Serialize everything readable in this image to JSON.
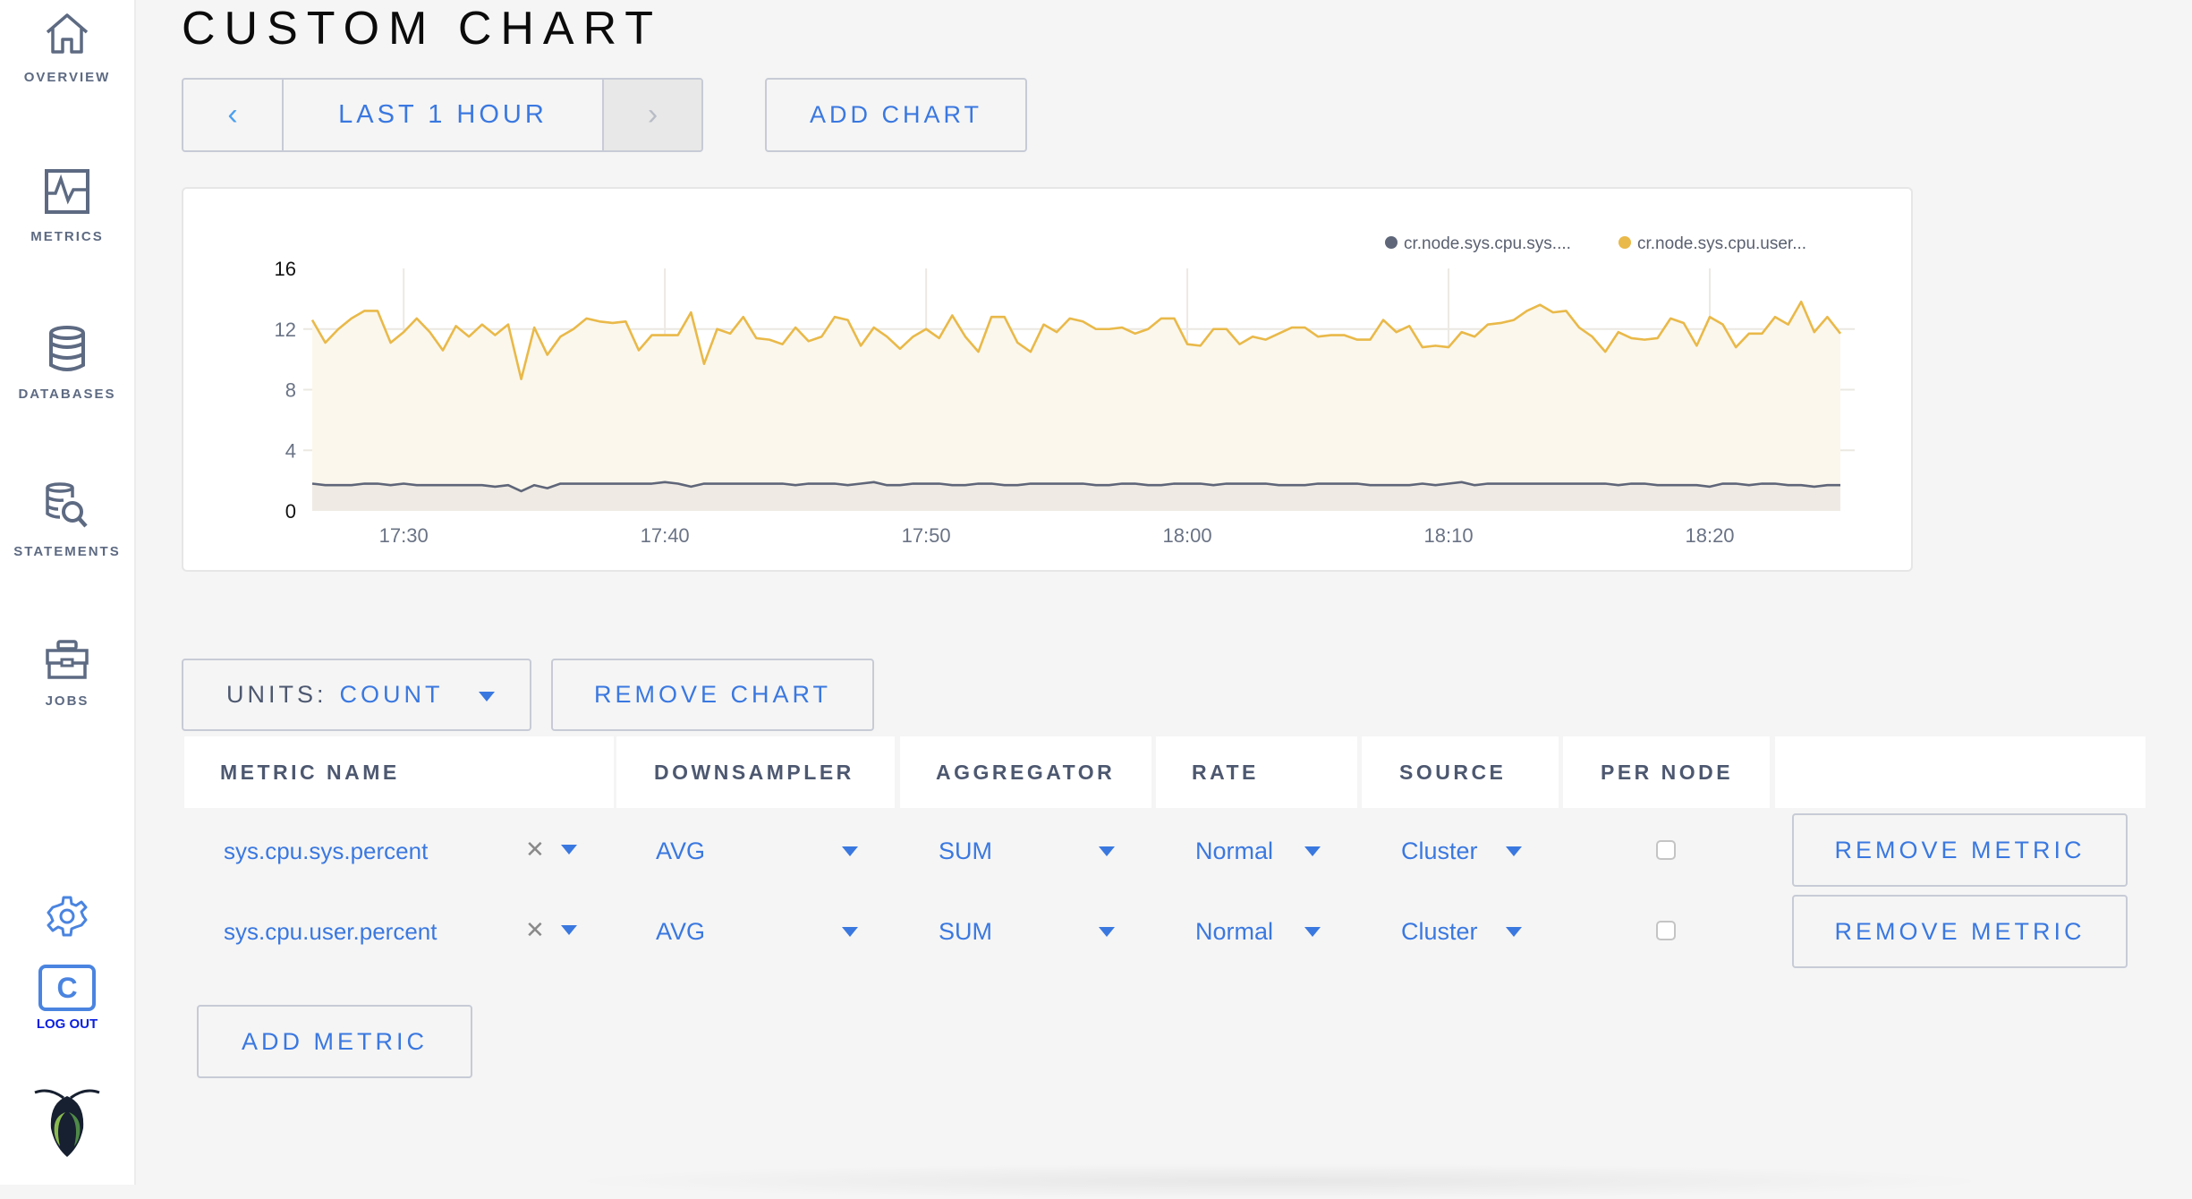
{
  "sidebar": {
    "items": [
      {
        "label": "OVERVIEW",
        "icon": "home-icon"
      },
      {
        "label": "METRICS",
        "icon": "metrics-icon"
      },
      {
        "label": "DATABASES",
        "icon": "database-icon"
      },
      {
        "label": "STATEMENTS",
        "icon": "statements-icon"
      },
      {
        "label": "JOBS",
        "icon": "briefcase-icon"
      }
    ],
    "settings_icon": "gear-icon",
    "user_initial": "C",
    "logout_label": "LOG OUT",
    "logo": "cockroach-logo"
  },
  "page": {
    "title": "CUSTOM CHART"
  },
  "toolbar": {
    "time_range": "LAST 1 HOUR",
    "prev_icon": "chevron-left-icon",
    "next_icon": "chevron-right-icon",
    "add_chart_label": "ADD CHART"
  },
  "chart_controls": {
    "units_label": "UNITS:",
    "units_value": "COUNT",
    "remove_chart_label": "REMOVE CHART"
  },
  "table": {
    "headers": [
      "METRIC NAME",
      "DOWNSAMPLER",
      "AGGREGATOR",
      "RATE",
      "SOURCE",
      "PER NODE",
      ""
    ],
    "rows": [
      {
        "metric": "sys.cpu.sys.percent",
        "downsampler": "AVG",
        "aggregator": "SUM",
        "rate": "Normal",
        "source": "Cluster",
        "per_node": false,
        "remove_label": "REMOVE METRIC"
      },
      {
        "metric": "sys.cpu.user.percent",
        "downsampler": "AVG",
        "aggregator": "SUM",
        "rate": "Normal",
        "source": "Cluster",
        "per_node": false,
        "remove_label": "REMOVE METRIC"
      }
    ],
    "add_metric_label": "ADD METRIC"
  },
  "colors": {
    "accent": "#3a78e0",
    "sys_series": "#5f6679",
    "user_series": "#e9b949",
    "user_fill": "#fbf7ec",
    "sys_fill": "#eeeae4"
  },
  "chart_data": {
    "type": "area",
    "title": "",
    "xlabel": "",
    "ylabel": "",
    "ylim": [
      0,
      16
    ],
    "yticks": [
      "0",
      "4",
      "8",
      "12",
      "16"
    ],
    "xticks": [
      "17:30",
      "17:40",
      "17:50",
      "18:00",
      "18:10",
      "18:20"
    ],
    "grid": true,
    "legend_position": "top-right",
    "x": [
      "17:26:30",
      "17:27:00",
      "17:27:30",
      "17:28:00",
      "17:28:30",
      "17:29:00",
      "17:29:30",
      "17:30:00",
      "17:30:30",
      "17:31:00",
      "17:31:30",
      "17:32:00",
      "17:32:30",
      "17:33:00",
      "17:33:30",
      "17:34:00",
      "17:34:30",
      "17:35:00",
      "17:35:30",
      "17:36:00",
      "17:36:30",
      "17:37:00",
      "17:37:30",
      "17:38:00",
      "17:38:30",
      "17:39:00",
      "17:39:30",
      "17:40:00",
      "17:40:30",
      "17:41:00",
      "17:41:30",
      "17:42:00",
      "17:42:30",
      "17:43:00",
      "17:43:30",
      "17:44:00",
      "17:44:30",
      "17:45:00",
      "17:45:30",
      "17:46:00",
      "17:46:30",
      "17:47:00",
      "17:47:30",
      "17:48:00",
      "17:48:30",
      "17:49:00",
      "17:49:30",
      "17:50:00",
      "17:50:30",
      "17:51:00",
      "17:51:30",
      "17:52:00",
      "17:52:30",
      "17:53:00",
      "17:53:30",
      "17:54:00",
      "17:54:30",
      "17:55:00",
      "17:55:30",
      "17:56:00",
      "17:56:30",
      "17:57:00",
      "17:57:30",
      "17:58:00",
      "17:58:30",
      "17:59:00",
      "17:59:30",
      "18:00:00",
      "18:00:30",
      "18:01:00",
      "18:01:30",
      "18:02:00",
      "18:02:30",
      "18:03:00",
      "18:03:30",
      "18:04:00",
      "18:04:30",
      "18:05:00",
      "18:05:30",
      "18:06:00",
      "18:06:30",
      "18:07:00",
      "18:07:30",
      "18:08:00",
      "18:08:30",
      "18:09:00",
      "18:09:30",
      "18:10:00",
      "18:10:30",
      "18:11:00",
      "18:11:30",
      "18:12:00",
      "18:12:30",
      "18:13:00",
      "18:13:30",
      "18:14:00",
      "18:14:30",
      "18:15:00",
      "18:15:30",
      "18:16:00",
      "18:16:30",
      "18:17:00",
      "18:17:30",
      "18:18:00",
      "18:18:30",
      "18:19:00",
      "18:19:30",
      "18:20:00",
      "18:20:30",
      "18:21:00",
      "18:21:30",
      "18:22:00",
      "18:22:30",
      "18:23:00",
      "18:23:30",
      "18:24:00",
      "18:24:30",
      "18:25:00"
    ],
    "series": [
      {
        "name": "cr.node.sys.cpu.sys....",
        "color": "#5f6679",
        "values": [
          1.8,
          1.7,
          1.7,
          1.7,
          1.8,
          1.8,
          1.7,
          1.8,
          1.7,
          1.7,
          1.7,
          1.7,
          1.7,
          1.7,
          1.6,
          1.7,
          1.3,
          1.7,
          1.5,
          1.8,
          1.8,
          1.8,
          1.8,
          1.8,
          1.8,
          1.8,
          1.8,
          1.9,
          1.8,
          1.6,
          1.8,
          1.8,
          1.8,
          1.8,
          1.8,
          1.8,
          1.8,
          1.7,
          1.8,
          1.8,
          1.8,
          1.7,
          1.8,
          1.9,
          1.7,
          1.7,
          1.8,
          1.8,
          1.8,
          1.7,
          1.7,
          1.8,
          1.8,
          1.7,
          1.7,
          1.8,
          1.8,
          1.8,
          1.8,
          1.8,
          1.7,
          1.7,
          1.8,
          1.8,
          1.7,
          1.7,
          1.8,
          1.8,
          1.8,
          1.7,
          1.8,
          1.8,
          1.8,
          1.8,
          1.7,
          1.7,
          1.7,
          1.8,
          1.8,
          1.8,
          1.8,
          1.7,
          1.7,
          1.7,
          1.7,
          1.8,
          1.7,
          1.8,
          1.9,
          1.7,
          1.8,
          1.8,
          1.8,
          1.8,
          1.8,
          1.8,
          1.8,
          1.8,
          1.8,
          1.8,
          1.7,
          1.8,
          1.8,
          1.7,
          1.7,
          1.7,
          1.7,
          1.6,
          1.8,
          1.8,
          1.7,
          1.8,
          1.8,
          1.7,
          1.7,
          1.6,
          1.7,
          1.7
        ]
      },
      {
        "name": "cr.node.sys.cpu.user...",
        "color": "#e9b949",
        "values": [
          12.6,
          11.1,
          12.0,
          12.7,
          13.2,
          13.2,
          11.1,
          11.8,
          12.7,
          11.8,
          10.6,
          12.2,
          11.5,
          12.3,
          11.6,
          12.3,
          8.7,
          12.1,
          10.3,
          11.5,
          12.0,
          12.7,
          12.5,
          12.4,
          12.5,
          10.6,
          11.6,
          11.6,
          11.6,
          13.1,
          9.7,
          12.0,
          11.7,
          12.8,
          11.4,
          11.3,
          11.0,
          12.1,
          11.2,
          11.5,
          12.8,
          12.6,
          10.9,
          12.1,
          11.5,
          10.7,
          11.5,
          12.0,
          11.4,
          12.9,
          11.5,
          10.5,
          12.8,
          12.8,
          11.1,
          10.5,
          12.3,
          11.8,
          12.7,
          12.5,
          12.0,
          12.0,
          12.1,
          11.7,
          12.0,
          12.7,
          12.7,
          11.0,
          10.9,
          12.0,
          12.0,
          11.0,
          11.5,
          11.3,
          11.7,
          12.1,
          12.1,
          11.5,
          11.6,
          11.6,
          11.3,
          11.3,
          12.6,
          11.8,
          12.2,
          10.8,
          10.9,
          10.8,
          11.8,
          11.5,
          12.3,
          12.4,
          12.6,
          13.2,
          13.6,
          13.1,
          13.2,
          12.1,
          11.5,
          10.5,
          11.8,
          11.4,
          11.3,
          11.4,
          12.7,
          12.4,
          10.9,
          12.8,
          12.3,
          10.8,
          11.7,
          11.7,
          12.8,
          12.3,
          13.8,
          11.8,
          12.8,
          11.7
        ]
      }
    ]
  }
}
